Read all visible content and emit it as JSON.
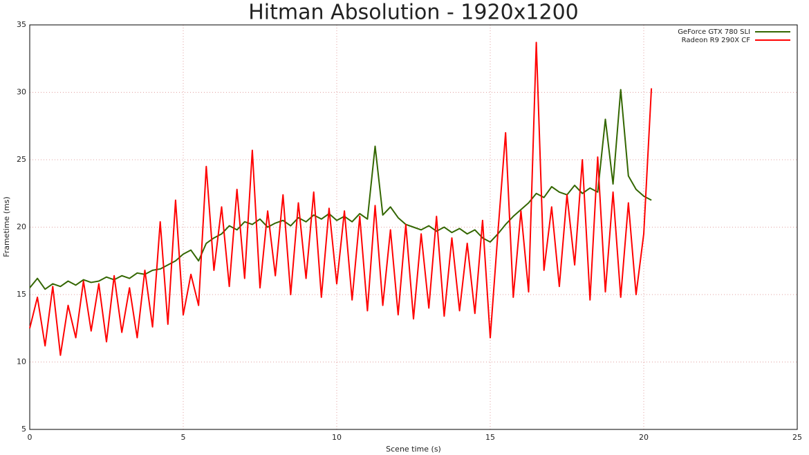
{
  "chart_data": {
    "type": "line",
    "title": "Hitman Absolution - 1920x1200",
    "xlabel": "Scene time (s)",
    "ylabel": "Frametime (ms)",
    "xlim": [
      0,
      25
    ],
    "xticks": [
      0,
      5,
      10,
      15,
      20,
      25
    ],
    "ylim": [
      5,
      35
    ],
    "yticks": [
      5,
      10,
      15,
      20,
      25,
      30,
      35
    ],
    "grid": true,
    "legend": "top-right",
    "x": [
      0,
      0.25,
      0.5,
      0.75,
      1,
      1.25,
      1.5,
      1.75,
      2,
      2.25,
      2.5,
      2.75,
      3,
      3.25,
      3.5,
      3.75,
      4,
      4.25,
      4.5,
      4.75,
      5,
      5.25,
      5.5,
      5.75,
      6,
      6.25,
      6.5,
      6.75,
      7,
      7.25,
      7.5,
      7.75,
      8,
      8.25,
      8.5,
      8.75,
      9,
      9.25,
      9.5,
      9.75,
      10,
      10.25,
      10.5,
      10.75,
      11,
      11.25,
      11.5,
      11.75,
      12,
      12.25,
      12.5,
      12.75,
      13,
      13.25,
      13.5,
      13.75,
      14,
      14.25,
      14.5,
      14.75,
      15,
      15.25,
      15.5,
      15.75,
      16,
      16.25,
      16.5,
      16.75,
      17,
      17.25,
      17.5,
      17.75,
      18,
      18.25,
      18.5,
      18.75,
      19,
      19.25,
      19.5,
      19.75,
      20,
      20.25
    ],
    "series": [
      {
        "name": "GeForce GTX 780 SLI",
        "color": "#336600",
        "values": [
          15.5,
          16.2,
          15.4,
          15.8,
          15.6,
          16.0,
          15.7,
          16.1,
          15.9,
          16.0,
          16.3,
          16.1,
          16.4,
          16.2,
          16.6,
          16.5,
          16.8,
          16.9,
          17.2,
          17.5,
          18.0,
          18.3,
          17.5,
          18.8,
          19.2,
          19.5,
          20.1,
          19.8,
          20.4,
          20.2,
          20.6,
          20.0,
          20.3,
          20.5,
          20.1,
          20.7,
          20.4,
          20.9,
          20.6,
          21.0,
          20.5,
          20.8,
          20.4,
          21.0,
          20.6,
          26.0,
          20.9,
          21.5,
          20.7,
          20.2,
          20.0,
          19.8,
          20.1,
          19.7,
          20.0,
          19.6,
          19.9,
          19.5,
          19.8,
          19.2,
          18.9,
          19.5,
          20.2,
          20.8,
          21.3,
          21.8,
          22.5,
          22.2,
          23.0,
          22.6,
          22.4,
          23.1,
          22.5,
          22.9,
          22.6,
          28.0,
          23.2,
          30.2,
          23.8,
          22.8,
          22.3,
          22.0
        ]
      },
      {
        "name": "Radeon R9 290X CF",
        "color": "#ff0000",
        "values": [
          12.5,
          14.8,
          11.2,
          15.6,
          10.5,
          14.2,
          11.8,
          16.0,
          12.3,
          15.8,
          11.5,
          16.4,
          12.2,
          15.5,
          11.8,
          16.8,
          12.6,
          20.4,
          12.8,
          22.0,
          13.5,
          16.5,
          14.2,
          24.5,
          16.8,
          21.5,
          15.6,
          22.8,
          16.2,
          25.7,
          15.5,
          21.2,
          16.4,
          22.4,
          15.0,
          21.8,
          16.2,
          22.6,
          14.8,
          21.4,
          15.8,
          21.2,
          14.6,
          20.8,
          13.8,
          21.6,
          14.2,
          19.8,
          13.5,
          20.2,
          13.2,
          19.5,
          14.0,
          20.8,
          13.4,
          19.2,
          13.8,
          18.8,
          13.6,
          20.5,
          11.8,
          19.6,
          27.0,
          14.8,
          21.2,
          15.2,
          33.7,
          16.8,
          21.5,
          15.6,
          22.4,
          17.2,
          25.0,
          14.6,
          25.2,
          15.2,
          22.6,
          14.8,
          21.8,
          15.0,
          19.5,
          30.3
        ]
      }
    ]
  }
}
